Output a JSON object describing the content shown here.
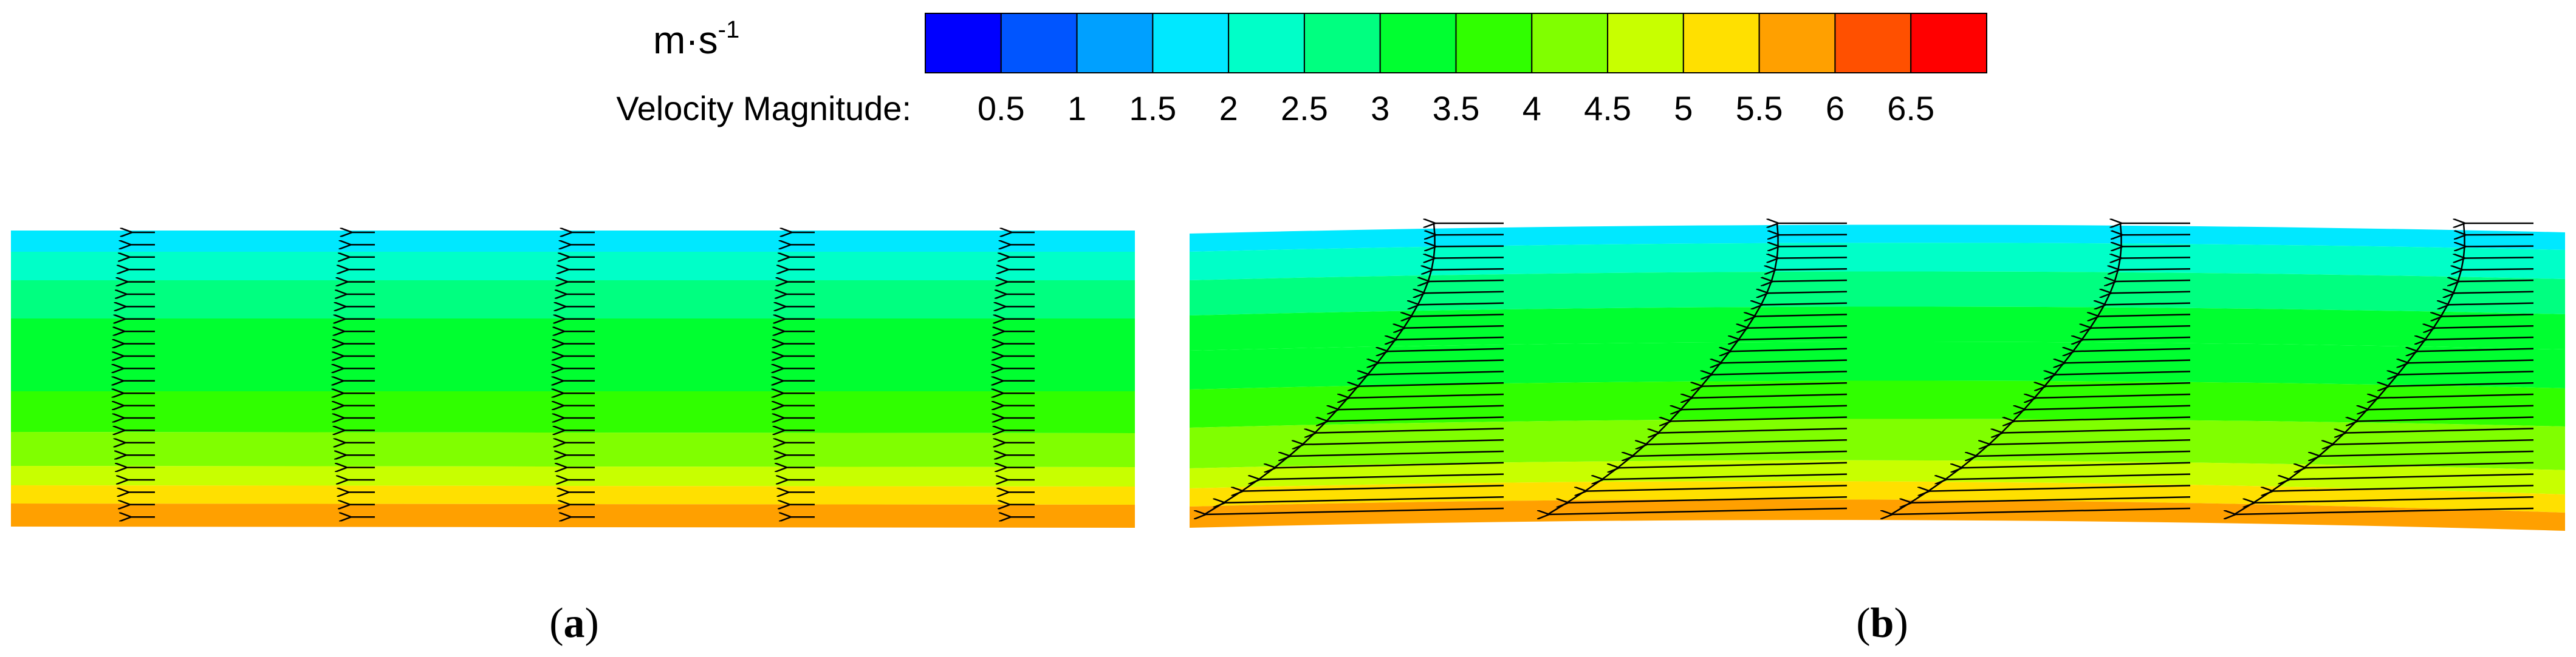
{
  "legend": {
    "unit_base": "m·s",
    "unit_exp": "-1",
    "title": "Velocity Magnitude:",
    "ticks": [
      "0.5",
      "1",
      "1.5",
      "2",
      "2.5",
      "3",
      "3.5",
      "4",
      "4.5",
      "5",
      "5.5",
      "6",
      "6.5"
    ],
    "colors": [
      "#0000ff",
      "#0055ff",
      "#00a0ff",
      "#00e8ff",
      "#00ffc8",
      "#00ff80",
      "#00ff30",
      "#30ff00",
      "#80ff00",
      "#c8ff00",
      "#ffe000",
      "#ffa000",
      "#ff5000",
      "#ff0000"
    ]
  },
  "panels": [
    {
      "caption_letter": "a",
      "bands": [
        "#00e8ff",
        "#00ffc8",
        "#00ff80",
        "#00ff30",
        "#00ff30",
        "#30ff00",
        "#80ff00",
        "#c8ff00",
        "#ffe000",
        "#ffa000"
      ],
      "profiles": 5,
      "style": "uniform"
    },
    {
      "caption_letter": "b",
      "bands": [
        "#00e8ff",
        "#00ffc8",
        "#00ff80",
        "#00ff30",
        "#00ff30",
        "#30ff00",
        "#80ff00",
        "#c8ff00",
        "#ffe000",
        "#ffa000"
      ],
      "profiles": 4,
      "style": "sheared"
    }
  ]
}
